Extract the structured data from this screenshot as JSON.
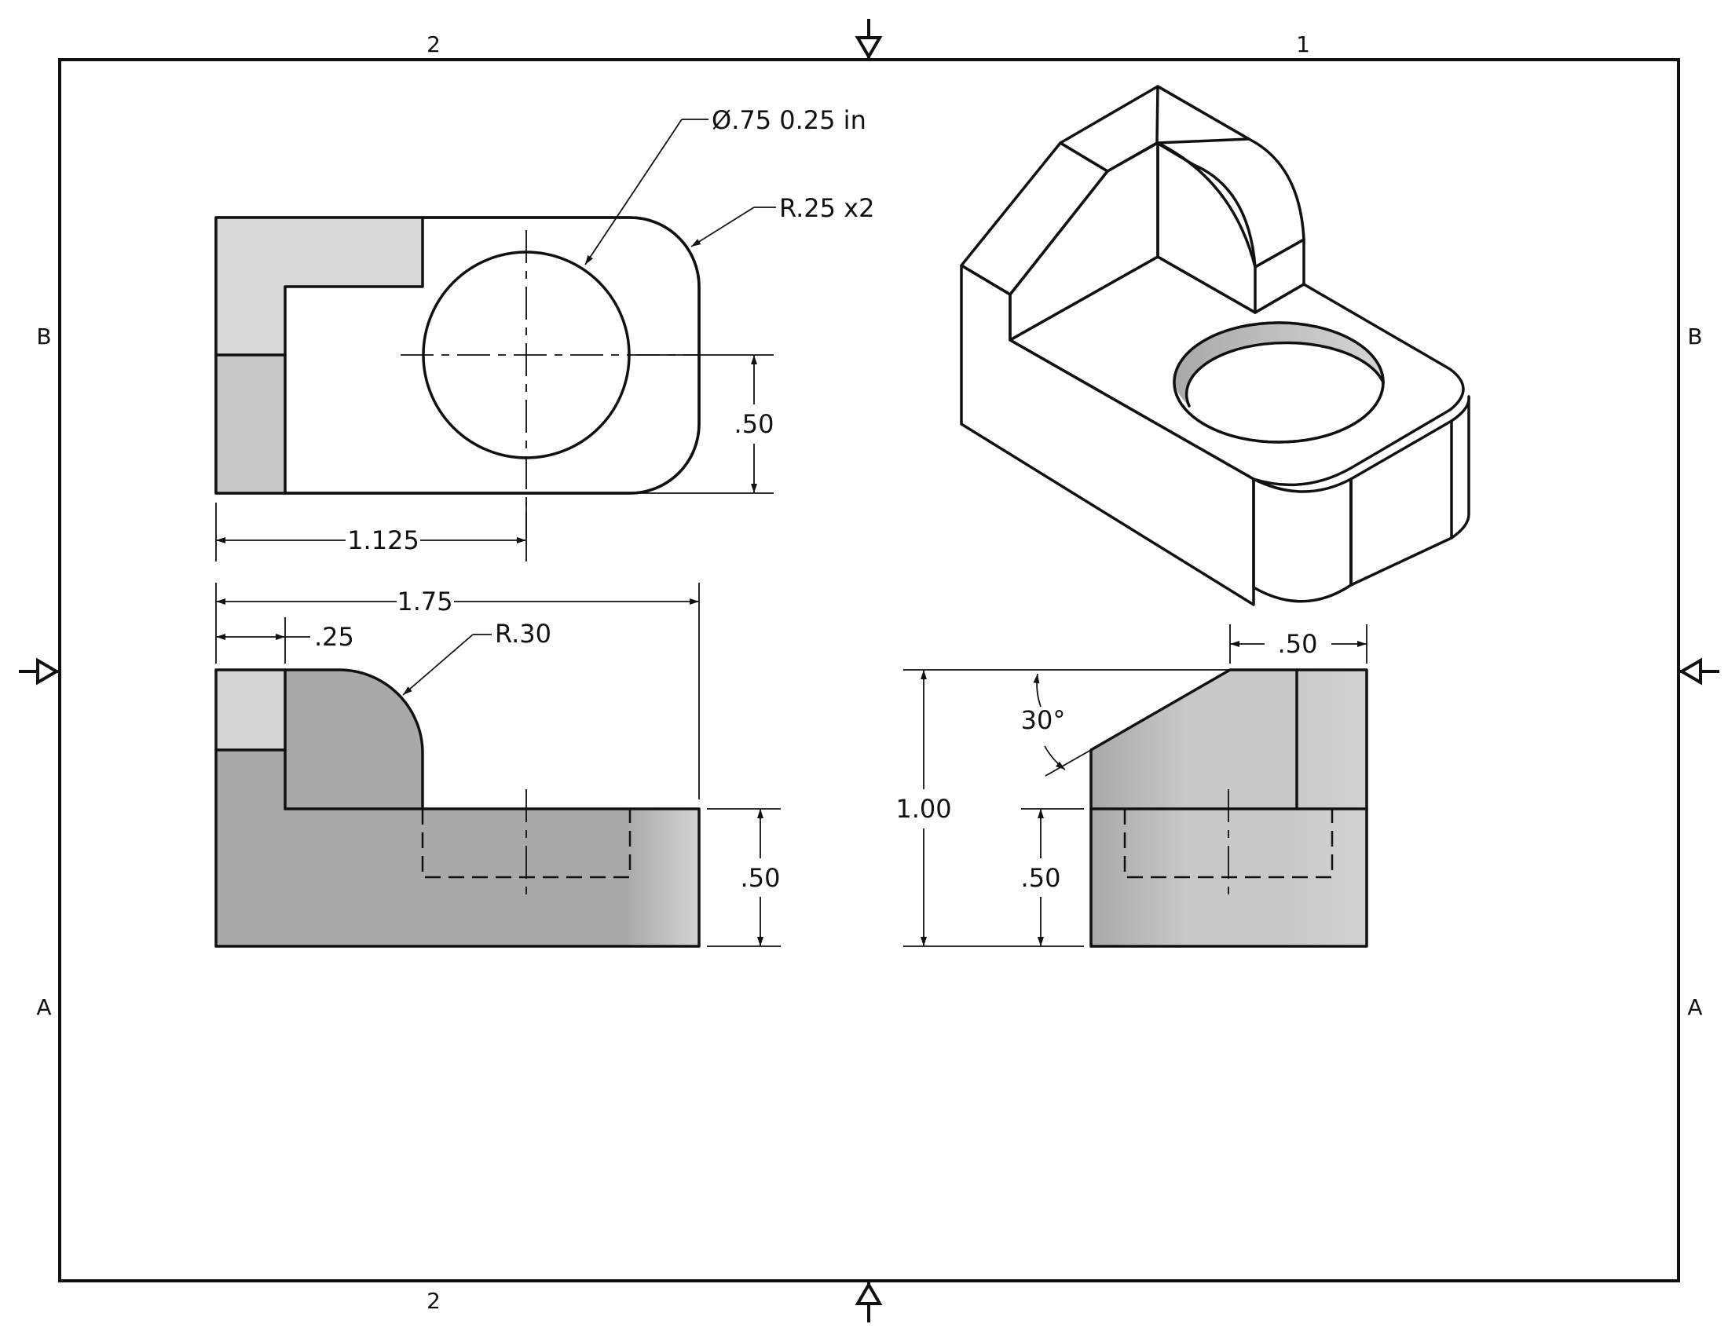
{
  "sheet": {
    "zones_top": [
      "2",
      "1"
    ],
    "zones_bottom": [
      "2"
    ],
    "zones_left": [
      "B",
      "A"
    ],
    "zones_right": [
      "B",
      "A"
    ]
  },
  "top_view": {
    "hole_note": "Ø.75 0.25 in",
    "fillet_note": "R.25 x2",
    "dim_height": ".50",
    "dim_hole_x": "1.125"
  },
  "front_view": {
    "dim_width": "1.75",
    "dim_step": ".25",
    "radius_note": "R.30",
    "dim_base_height": ".50"
  },
  "side_view": {
    "dim_top_width": ".50",
    "angle": "30°",
    "dim_total_height": "1.00",
    "dim_base_height": ".50"
  },
  "colors": {
    "face_light": "#d9d9d9",
    "face_mid": "#c8c8c8",
    "face_dark": "#a9a9a9",
    "line": "#111111"
  }
}
